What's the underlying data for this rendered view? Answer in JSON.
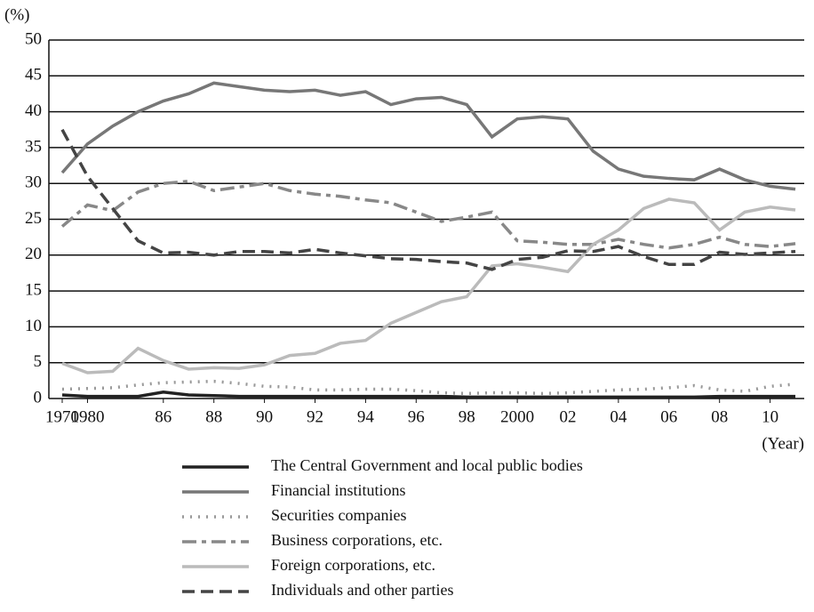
{
  "chart_data": {
    "type": "line",
    "y_label": "(%)",
    "x_label": "(Year)",
    "categories": [
      "1970",
      "1980",
      null,
      null,
      "86",
      null,
      "88",
      null,
      "90",
      null,
      "92",
      null,
      "94",
      null,
      "96",
      null,
      "98",
      null,
      "2000",
      null,
      "02",
      null,
      "04",
      null,
      "06",
      null,
      "08",
      null,
      "10",
      null
    ],
    "ylim": [
      0,
      50
    ],
    "yticks": [
      0,
      5,
      10,
      15,
      20,
      25,
      30,
      35,
      40,
      45,
      50
    ],
    "grid": true,
    "series": [
      {
        "name": "The Central Government and local public bodies",
        "color": "#222222",
        "dash": "solid",
        "values": [
          0.5,
          0.3,
          0.3,
          0.3,
          0.9,
          0.5,
          0.4,
          0.3,
          0.3,
          0.3,
          0.3,
          0.3,
          0.3,
          0.3,
          0.3,
          0.3,
          0.2,
          0.2,
          0.2,
          0.2,
          0.2,
          0.2,
          0.2,
          0.2,
          0.2,
          0.2,
          0.3,
          0.3,
          0.3,
          0.3
        ]
      },
      {
        "name": "Financial institutions",
        "color": "#777777",
        "dash": "solid",
        "values": [
          31.5,
          35.5,
          38,
          40,
          41.5,
          42.5,
          44,
          43.5,
          43,
          42.8,
          43,
          42.3,
          42.8,
          41,
          41.8,
          42,
          41,
          36.5,
          39,
          39.3,
          39,
          34.5,
          32,
          31,
          30.7,
          30.5,
          32,
          30.5,
          29.6,
          29.2
        ]
      },
      {
        "name": "Securities companies",
        "color": "#999999",
        "dash": "dotted",
        "values": [
          1.3,
          1.4,
          1.5,
          1.9,
          2.2,
          2.3,
          2.4,
          2.1,
          1.7,
          1.6,
          1.2,
          1.2,
          1.3,
          1.3,
          1.1,
          0.8,
          0.7,
          0.8,
          0.8,
          0.7,
          0.8,
          1.0,
          1.2,
          1.3,
          1.5,
          1.8,
          1.2,
          1.0,
          1.7,
          2.0
        ]
      },
      {
        "name": "Business corporations, etc.",
        "color": "#888888",
        "dash": "dashdot",
        "values": [
          24,
          27,
          26.2,
          28.8,
          30,
          30.3,
          29,
          29.5,
          30,
          29,
          28.5,
          28.2,
          27.7,
          27.3,
          26,
          24.7,
          25.3,
          26,
          22,
          21.8,
          21.5,
          21.5,
          22.2,
          21.5,
          21,
          21.5,
          22.5,
          21.5,
          21.2,
          21.6
        ]
      },
      {
        "name": "Foreign corporations, etc.",
        "color": "#bbbbbb",
        "dash": "solid",
        "values": [
          4.9,
          3.6,
          3.8,
          7,
          5.3,
          4.1,
          4.3,
          4.2,
          4.7,
          6,
          6.3,
          7.7,
          8.1,
          10.5,
          12,
          13.5,
          14.2,
          18.5,
          18.8,
          18.3,
          17.7,
          21.5,
          23.5,
          26.5,
          27.8,
          27.3,
          23.5,
          26,
          26.7,
          26.3
        ]
      },
      {
        "name": "Individuals and other parties",
        "color": "#444444",
        "dash": "dashed",
        "values": [
          37.5,
          31,
          26.5,
          22,
          20.3,
          20.4,
          20,
          20.5,
          20.5,
          20.3,
          20.8,
          20.3,
          19.9,
          19.5,
          19.4,
          19.1,
          18.9,
          18,
          19.4,
          19.7,
          20.6,
          20.5,
          21.2,
          19.8,
          18.7,
          18.7,
          20.4,
          20.1,
          20.3,
          20.5
        ]
      }
    ]
  }
}
